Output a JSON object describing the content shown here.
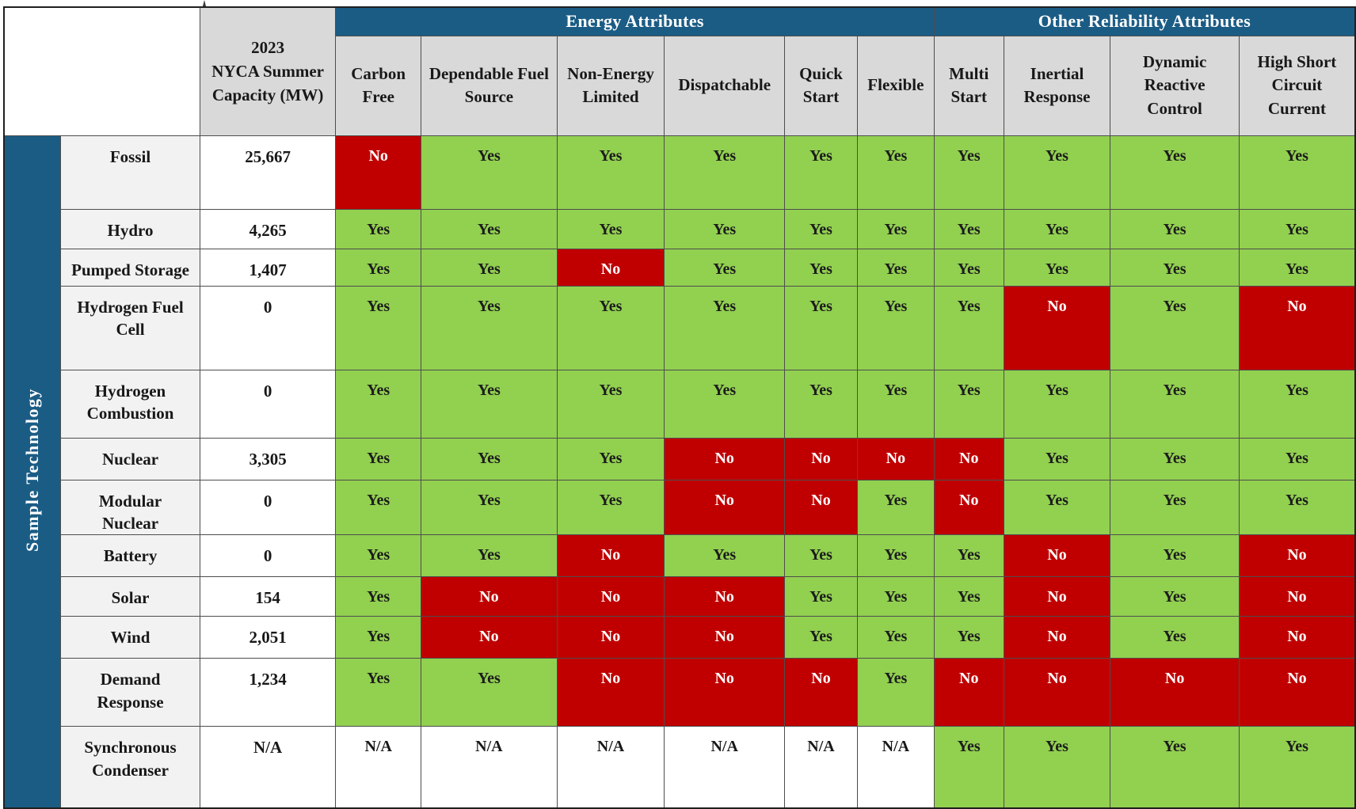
{
  "table": {
    "row_group_label": "Sample Technology",
    "capacity_header_lines": [
      "2023",
      "NYCA Summer",
      "Capacity (MW)"
    ],
    "groups": [
      {
        "label": "Energy Attributes",
        "span": 6
      },
      {
        "label": "Other Reliability Attributes",
        "span": 4
      }
    ],
    "columns": [
      "Carbon Free",
      "Dependable Fuel Source",
      "Non-Energy Limited",
      "Dispatchable",
      "Quick Start",
      "Flexible",
      "Multi Start",
      "Inertial Response",
      "Dynamic Reactive Control",
      "High Short Circuit Current"
    ],
    "rows": [
      {
        "tech": "Fossil",
        "capacity": "25,667",
        "values": [
          "No",
          "Yes",
          "Yes",
          "Yes",
          "Yes",
          "Yes",
          "Yes",
          "Yes",
          "Yes",
          "Yes"
        ]
      },
      {
        "tech": "Hydro",
        "capacity": "4,265",
        "values": [
          "Yes",
          "Yes",
          "Yes",
          "Yes",
          "Yes",
          "Yes",
          "Yes",
          "Yes",
          "Yes",
          "Yes"
        ]
      },
      {
        "tech": "Pumped Storage",
        "capacity": "1,407",
        "values": [
          "Yes",
          "Yes",
          "No",
          "Yes",
          "Yes",
          "Yes",
          "Yes",
          "Yes",
          "Yes",
          "Yes"
        ]
      },
      {
        "tech": "Hydrogen Fuel Cell",
        "capacity": "0",
        "values": [
          "Yes",
          "Yes",
          "Yes",
          "Yes",
          "Yes",
          "Yes",
          "Yes",
          "No",
          "Yes",
          "No"
        ]
      },
      {
        "tech": "Hydrogen Combustion",
        "capacity": "0",
        "values": [
          "Yes",
          "Yes",
          "Yes",
          "Yes",
          "Yes",
          "Yes",
          "Yes",
          "Yes",
          "Yes",
          "Yes"
        ]
      },
      {
        "tech": "Nuclear",
        "capacity": "3,305",
        "values": [
          "Yes",
          "Yes",
          "Yes",
          "No",
          "No",
          "No",
          "No",
          "Yes",
          "Yes",
          "Yes"
        ]
      },
      {
        "tech": "Modular Nuclear",
        "capacity": "0",
        "values": [
          "Yes",
          "Yes",
          "Yes",
          "No",
          "No",
          "Yes",
          "No",
          "Yes",
          "Yes",
          "Yes"
        ]
      },
      {
        "tech": "Battery",
        "capacity": "0",
        "values": [
          "Yes",
          "Yes",
          "No",
          "Yes",
          "Yes",
          "Yes",
          "Yes",
          "No",
          "Yes",
          "No"
        ]
      },
      {
        "tech": "Solar",
        "capacity": "154",
        "values": [
          "Yes",
          "No",
          "No",
          "No",
          "Yes",
          "Yes",
          "Yes",
          "No",
          "Yes",
          "No"
        ]
      },
      {
        "tech": "Wind",
        "capacity": "2,051",
        "values": [
          "Yes",
          "No",
          "No",
          "No",
          "Yes",
          "Yes",
          "Yes",
          "No",
          "Yes",
          "No"
        ]
      },
      {
        "tech": "Demand Response",
        "capacity": "1,234",
        "values": [
          "Yes",
          "Yes",
          "No",
          "No",
          "No",
          "Yes",
          "No",
          "No",
          "No",
          "No"
        ]
      },
      {
        "tech": "Synchronous Condenser",
        "capacity": "N/A",
        "values": [
          "N/A",
          "N/A",
          "N/A",
          "N/A",
          "N/A",
          "N/A",
          "Yes",
          "Yes",
          "Yes",
          "Yes"
        ]
      }
    ],
    "colors": {
      "yes_green": "#92d050",
      "no_red": "#c00000",
      "header_blue": "#1b5c85",
      "header_grey": "#d9d9d9",
      "label_grey": "#f2f2f2"
    }
  }
}
